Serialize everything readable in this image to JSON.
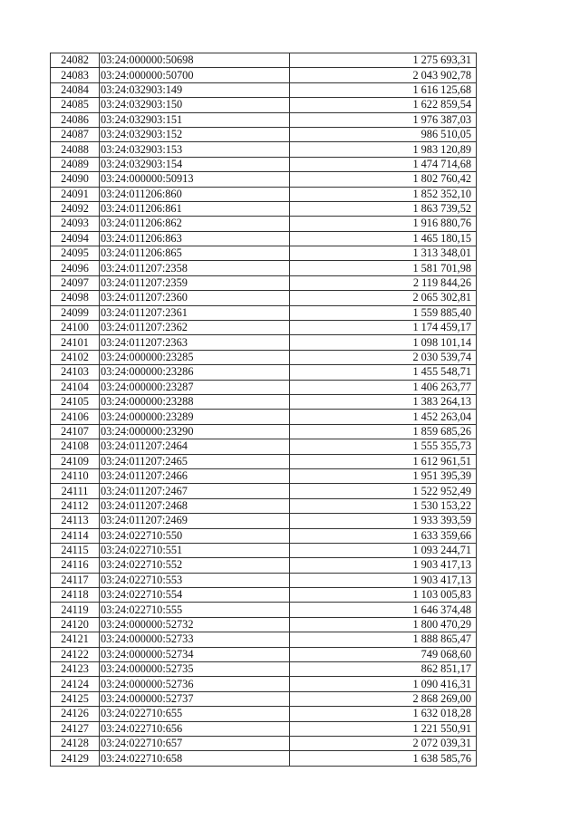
{
  "table": {
    "rows": [
      [
        "24082",
        "03:24:000000:50698",
        "1 275 693,31"
      ],
      [
        "24083",
        "03:24:000000:50700",
        "2 043 902,78"
      ],
      [
        "24084",
        "03:24:032903:149",
        "1 616 125,68"
      ],
      [
        "24085",
        "03:24:032903:150",
        "1 622 859,54"
      ],
      [
        "24086",
        "03:24:032903:151",
        "1 976 387,03"
      ],
      [
        "24087",
        "03:24:032903:152",
        "986 510,05"
      ],
      [
        "24088",
        "03:24:032903:153",
        "1 983 120,89"
      ],
      [
        "24089",
        "03:24:032903:154",
        "1 474 714,68"
      ],
      [
        "24090",
        "03:24:000000:50913",
        "1 802 760,42"
      ],
      [
        "24091",
        "03:24:011206:860",
        "1 852 352,10"
      ],
      [
        "24092",
        "03:24:011206:861",
        "1 863 739,52"
      ],
      [
        "24093",
        "03:24:011206:862",
        "1 916 880,76"
      ],
      [
        "24094",
        "03:24:011206:863",
        "1 465 180,15"
      ],
      [
        "24095",
        "03:24:011206:865",
        "1 313 348,01"
      ],
      [
        "24096",
        "03:24:011207:2358",
        "1 581 701,98"
      ],
      [
        "24097",
        "03:24:011207:2359",
        "2 119 844,26"
      ],
      [
        "24098",
        "03:24:011207:2360",
        "2 065 302,81"
      ],
      [
        "24099",
        "03:24:011207:2361",
        "1 559 885,40"
      ],
      [
        "24100",
        "03:24:011207:2362",
        "1 174 459,17"
      ],
      [
        "24101",
        "03:24:011207:2363",
        "1 098 101,14"
      ],
      [
        "24102",
        "03:24:000000:23285",
        "2 030 539,74"
      ],
      [
        "24103",
        "03:24:000000:23286",
        "1 455 548,71"
      ],
      [
        "24104",
        "03:24:000000:23287",
        "1 406 263,77"
      ],
      [
        "24105",
        "03:24:000000:23288",
        "1 383 264,13"
      ],
      [
        "24106",
        "03:24:000000:23289",
        "1 452 263,04"
      ],
      [
        "24107",
        "03:24:000000:23290",
        "1 859 685,26"
      ],
      [
        "24108",
        "03:24:011207:2464",
        "1 555 355,73"
      ],
      [
        "24109",
        "03:24:011207:2465",
        "1 612 961,51"
      ],
      [
        "24110",
        "03:24:011207:2466",
        "1 951 395,39"
      ],
      [
        "24111",
        "03:24:011207:2467",
        "1 522 952,49"
      ],
      [
        "24112",
        "03:24:011207:2468",
        "1 530 153,22"
      ],
      [
        "24113",
        "03:24:011207:2469",
        "1 933 393,59"
      ],
      [
        "24114",
        "03:24:022710:550",
        "1 633 359,66"
      ],
      [
        "24115",
        "03:24:022710:551",
        "1 093 244,71"
      ],
      [
        "24116",
        "03:24:022710:552",
        "1 903 417,13"
      ],
      [
        "24117",
        "03:24:022710:553",
        "1 903 417,13"
      ],
      [
        "24118",
        "03:24:022710:554",
        "1 103 005,83"
      ],
      [
        "24119",
        "03:24:022710:555",
        "1 646 374,48"
      ],
      [
        "24120",
        "03:24:000000:52732",
        "1 800 470,29"
      ],
      [
        "24121",
        "03:24:000000:52733",
        "1 888 865,47"
      ],
      [
        "24122",
        "03:24:000000:52734",
        "749 068,60"
      ],
      [
        "24123",
        "03:24:000000:52735",
        "862 851,17"
      ],
      [
        "24124",
        "03:24:000000:52736",
        "1 090 416,31"
      ],
      [
        "24125",
        "03:24:000000:52737",
        "2 868 269,00"
      ],
      [
        "24126",
        "03:24:022710:655",
        "1 632 018,28"
      ],
      [
        "24127",
        "03:24:022710:656",
        "1 221 550,91"
      ],
      [
        "24128",
        "03:24:022710:657",
        "2 072 039,31"
      ],
      [
        "24129",
        "03:24:022710:658",
        "1 638 585,76"
      ]
    ]
  }
}
